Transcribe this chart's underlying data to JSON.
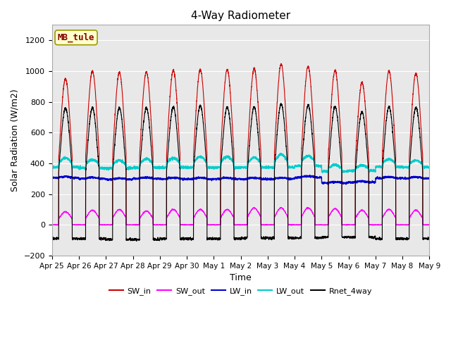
{
  "title": "4-Way Radiometer",
  "xlabel": "Time",
  "ylabel": "Solar Radiation (W/m2)",
  "ylim": [
    -200,
    1300
  ],
  "yticks": [
    -200,
    0,
    200,
    400,
    600,
    800,
    1000,
    1200
  ],
  "fig_facecolor": "#ffffff",
  "plot_bg_color": "#e8e8e8",
  "annotation_text": "MB_tule",
  "annotation_box_color": "#ffffcc",
  "annotation_box_edge": "#999900",
  "x_tick_labels": [
    "Apr 25",
    "Apr 26",
    "Apr 27",
    "Apr 28",
    "Apr 29",
    "Apr 30",
    "May 1",
    "May 2",
    "May 3",
    "May 4",
    "May 5",
    "May 6",
    "May 7",
    "May 8",
    "May 9"
  ],
  "colors": {
    "SW_in": "#cc0000",
    "SW_out": "#ff00ff",
    "LW_in": "#0000cc",
    "LW_out": "#00cccc",
    "Rnet_4way": "#000000"
  },
  "n_days": 14,
  "peak_SW_in": [
    950,
    1000,
    990,
    995,
    1005,
    1010,
    1010,
    1015,
    1045,
    1030,
    1005,
    925,
    1000,
    985
  ],
  "peak_SW_out": [
    85,
    95,
    100,
    90,
    100,
    100,
    100,
    110,
    110,
    110,
    105,
    95,
    100,
    95
  ],
  "LW_in_base": [
    305,
    300,
    295,
    300,
    298,
    298,
    298,
    297,
    298,
    308,
    272,
    277,
    303,
    302
  ],
  "LW_in_day_bump": [
    8,
    8,
    8,
    8,
    8,
    8,
    8,
    8,
    8,
    8,
    6,
    6,
    8,
    8
  ],
  "LW_out_base": [
    375,
    370,
    368,
    372,
    373,
    373,
    373,
    373,
    373,
    383,
    348,
    352,
    377,
    375
  ],
  "LW_out_day_bump": [
    60,
    55,
    52,
    58,
    62,
    70,
    70,
    65,
    85,
    65,
    42,
    35,
    50,
    45
  ],
  "peak_Rnet": [
    760,
    760,
    760,
    760,
    765,
    775,
    765,
    765,
    785,
    778,
    768,
    735,
    768,
    763
  ],
  "night_Rnet": [
    -90,
    -90,
    -95,
    -95,
    -90,
    -90,
    -90,
    -85,
    -85,
    -85,
    -80,
    -80,
    -90,
    -90
  ]
}
